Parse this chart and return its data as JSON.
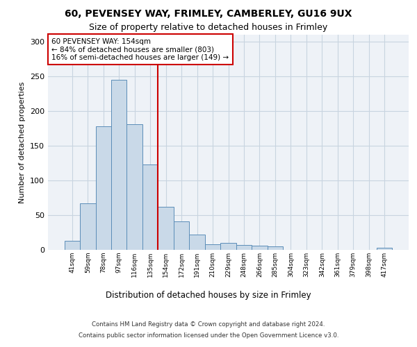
{
  "title_line1": "60, PEVENSEY WAY, FRIMLEY, CAMBERLEY, GU16 9UX",
  "title_line2": "Size of property relative to detached houses in Frimley",
  "xlabel": "Distribution of detached houses by size in Frimley",
  "ylabel": "Number of detached properties",
  "bar_labels": [
    "41sqm",
    "59sqm",
    "78sqm",
    "97sqm",
    "116sqm",
    "135sqm",
    "154sqm",
    "172sqm",
    "191sqm",
    "210sqm",
    "229sqm",
    "248sqm",
    "266sqm",
    "285sqm",
    "304sqm",
    "323sqm",
    "342sqm",
    "361sqm",
    "379sqm",
    "398sqm",
    "417sqm"
  ],
  "bar_values": [
    13,
    67,
    178,
    245,
    181,
    123,
    62,
    41,
    22,
    8,
    10,
    7,
    6,
    5,
    0,
    0,
    0,
    0,
    0,
    0,
    3
  ],
  "bar_color": "#c9d9e8",
  "bar_edge_color": "#5b8db8",
  "annotation_line1": "60 PEVENSEY WAY: 154sqm",
  "annotation_line2": "← 84% of detached houses are smaller (803)",
  "annotation_line3": "16% of semi-detached houses are larger (149) →",
  "vline_index": 6,
  "vline_color": "#cc0000",
  "annotation_box_color": "#cc0000",
  "grid_color": "#c8d4e0",
  "bg_color": "#eef2f7",
  "footer_line1": "Contains HM Land Registry data © Crown copyright and database right 2024.",
  "footer_line2": "Contains public sector information licensed under the Open Government Licence v3.0.",
  "ylim": [
    0,
    310
  ],
  "yticks": [
    0,
    50,
    100,
    150,
    200,
    250,
    300
  ]
}
